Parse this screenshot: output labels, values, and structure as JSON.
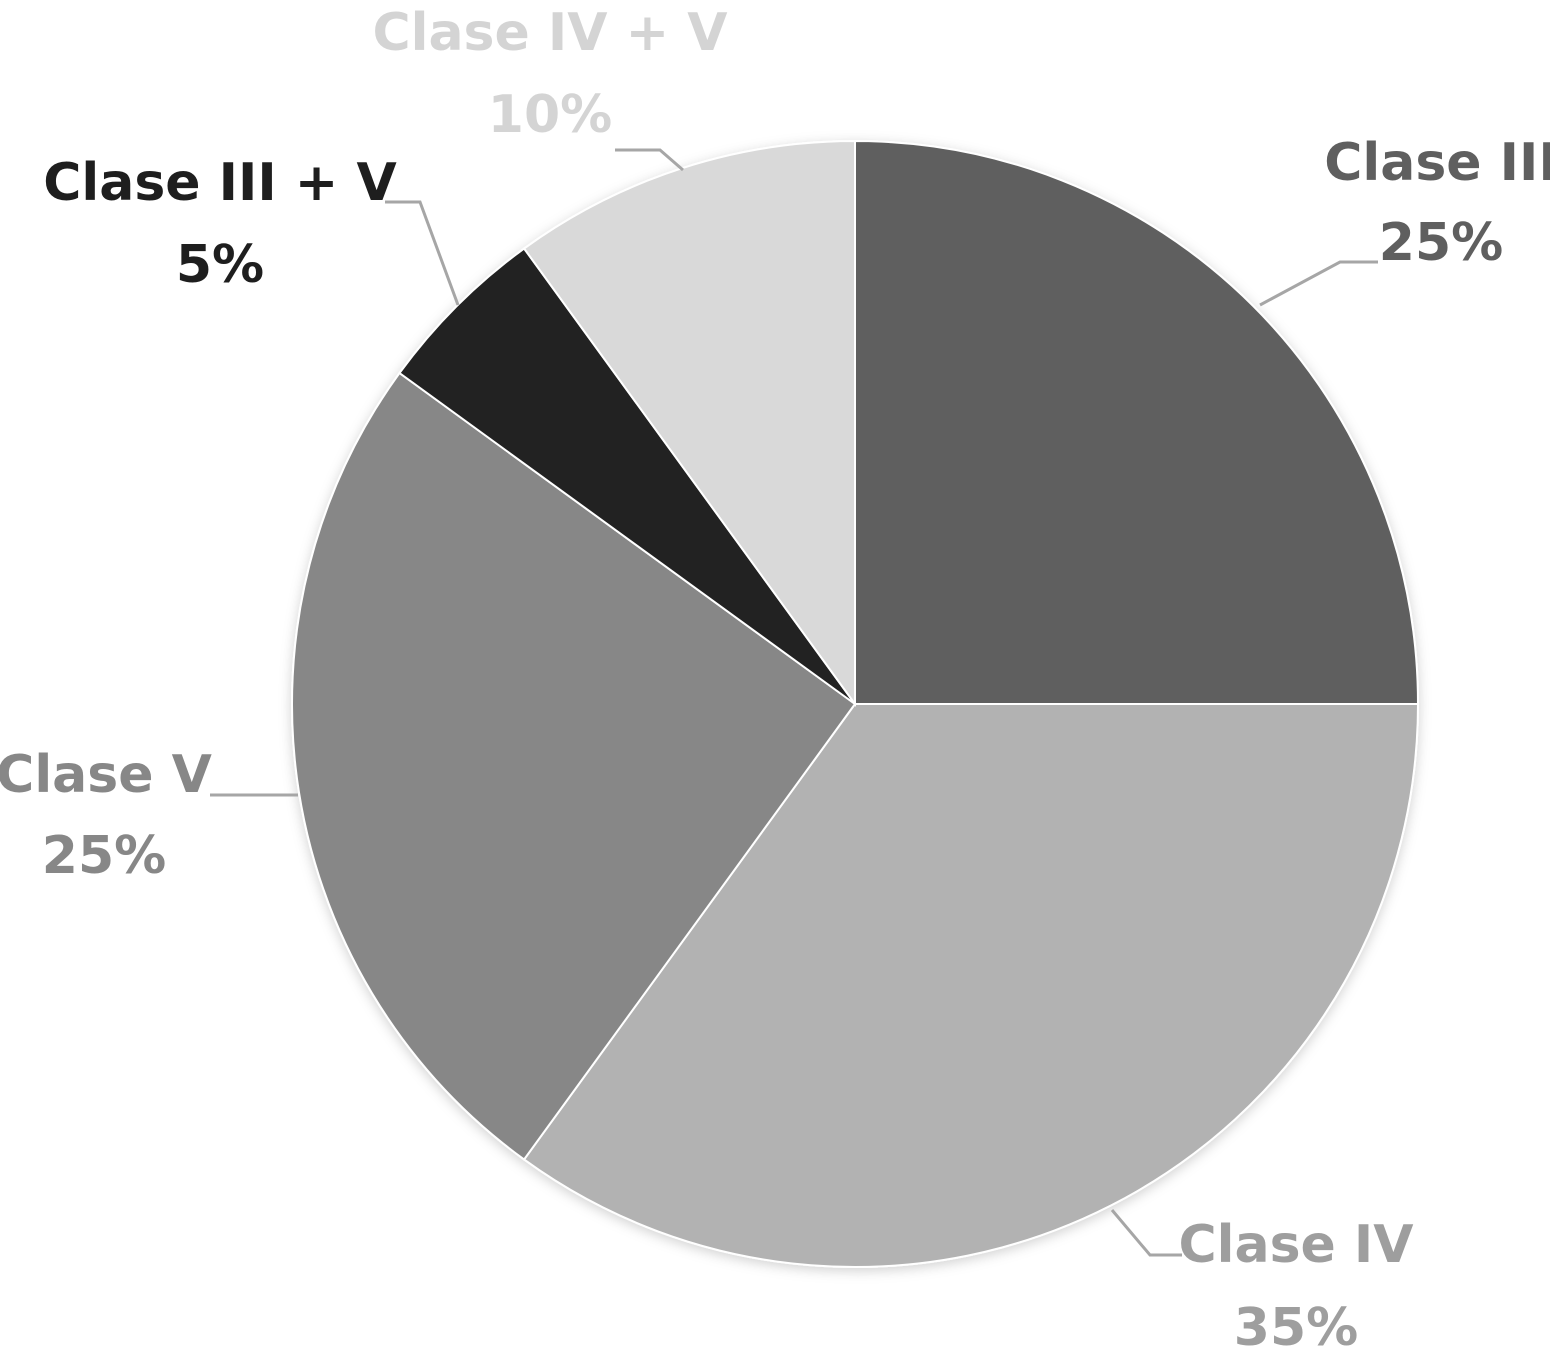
{
  "chart_data": {
    "type": "pie",
    "title": "",
    "start_angle_deg": 0,
    "direction": "clockwise",
    "slices": [
      {
        "label": "Clase III",
        "value": 25,
        "value_label": "25%",
        "color": "#5f5f5f",
        "text_color": "#5f5f5f"
      },
      {
        "label": "Clase IV",
        "value": 35,
        "value_label": "35%",
        "color": "#b2b2b2",
        "text_color": "#9e9e9e"
      },
      {
        "label": "Clase V",
        "value": 25,
        "value_label": "25%",
        "color": "#878787",
        "text_color": "#878787"
      },
      {
        "label": "Clase III + V",
        "value": 5,
        "value_label": "5%",
        "color": "#222222",
        "text_color": "#1e1e1e"
      },
      {
        "label": "Clase IV + V",
        "value": 10,
        "value_label": "10%",
        "color": "#d9d9d9",
        "text_color": "#d4d4d4"
      }
    ],
    "legend": "none",
    "data_labels": "outside-with-leader-lines"
  }
}
